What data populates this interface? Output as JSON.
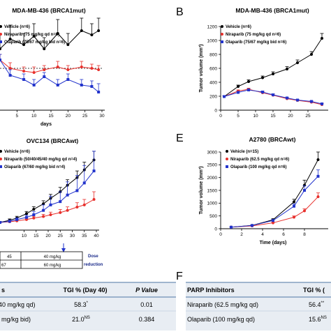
{
  "colors": {
    "vehicle": "#000000",
    "niraparib": "#e8302c",
    "olaparib": "#2233cc",
    "table_bg": "#e8edf3",
    "table_line": "#6d8fb5",
    "schedule_text": "#1a2a8a"
  },
  "chart_data": [
    {
      "id": "A",
      "type": "line",
      "title": "MDA-MB-436 (BRCA1mut)",
      "xlabel": "",
      "ylabel": "",
      "xlim": [
        0,
        30
      ],
      "xticks": [
        5,
        10,
        15,
        20,
        25,
        30
      ],
      "legend": [
        "Vehicle (n=6)",
        "Niraparib (75 mg/kg qd n=6)",
        "Olaparib (75/67 mg/kg bid n=6)"
      ],
      "series": [
        {
          "name": "Vehicle (n=6)",
          "x": [
            0,
            3,
            7,
            10,
            13,
            17,
            20,
            24,
            27,
            29
          ],
          "y": [
            104,
            111,
            107,
            113,
            104,
            115,
            107,
            117,
            114,
            117
          ],
          "err": [
            10,
            10,
            8,
            9,
            8,
            10,
            8,
            9,
            8,
            9
          ]
        },
        {
          "name": "Niraparib (75 mg/kg qd n=6)",
          "x": [
            0,
            3,
            7,
            10,
            13,
            17,
            20,
            24,
            27,
            29
          ],
          "y": [
            96,
            90,
            88,
            87,
            89,
            91,
            89,
            91,
            90,
            89
          ],
          "err": [
            4,
            4,
            3,
            4,
            3,
            4,
            3,
            4,
            3,
            3
          ]
        },
        {
          "name": "Olaparib (75/67 mg/kg bid n=6)",
          "x": [
            0,
            3,
            7,
            10,
            13,
            17,
            20,
            24,
            27,
            29
          ],
          "y": [
            96,
            85,
            82,
            78,
            84,
            78,
            82,
            78,
            77,
            73
          ],
          "err": [
            4,
            4,
            4,
            4,
            3,
            4,
            4,
            4,
            4,
            6
          ]
        }
      ],
      "reference_line": 100
    },
    {
      "id": "B",
      "type": "line",
      "title": "MDA-MB-436 (BRCA1mut)",
      "xlabel": "",
      "ylabel": "Tumor volume (mm³)",
      "xlim": [
        0,
        30
      ],
      "ylim": [
        0,
        1200
      ],
      "xticks": [
        0,
        5,
        10,
        15,
        20,
        25
      ],
      "yticks": [
        0,
        200,
        400,
        600,
        800,
        1000,
        1200
      ],
      "legend": [
        "Vehicle (n=6)",
        "Niraparib (75 mg/kg qd n=6)",
        "Olaparib (75/67 mg/kg bid n=6)"
      ],
      "series": [
        {
          "name": "Vehicle (n=6)",
          "x": [
            1,
            5,
            8,
            12,
            15,
            19,
            22,
            26,
            29
          ],
          "y": [
            195,
            340,
            410,
            465,
            520,
            590,
            680,
            800,
            1030
          ],
          "err": [
            10,
            20,
            25,
            25,
            30,
            35,
            40,
            40,
            70
          ]
        },
        {
          "name": "Niraparib (75 mg/kg qd n=6)",
          "x": [
            1,
            5,
            8,
            12,
            15,
            19,
            22,
            26,
            29
          ],
          "y": [
            195,
            275,
            300,
            250,
            215,
            165,
            140,
            115,
            80
          ],
          "err": [
            10,
            15,
            15,
            15,
            15,
            10,
            10,
            10,
            10
          ]
        },
        {
          "name": "Olaparib (75/67 mg/kg bid n=6)",
          "x": [
            1,
            5,
            8,
            12,
            15,
            19,
            22,
            26,
            29
          ],
          "y": [
            195,
            255,
            290,
            260,
            220,
            175,
            145,
            125,
            90
          ],
          "err": [
            10,
            15,
            15,
            15,
            15,
            10,
            10,
            10,
            10
          ]
        }
      ]
    },
    {
      "id": "C",
      "type": "line",
      "title": "OVC134 (BRCAwt)",
      "xlabel": "",
      "ylabel": "",
      "xlim": [
        0,
        40
      ],
      "xticks": [
        10,
        15,
        20,
        25,
        30,
        35,
        40
      ],
      "legend": [
        "Vehicle (n=6)",
        "Niraparib (50/40/45/40 mg/kg qd n=4)",
        "Olaparib (67/60 mg/kg bid n=4)"
      ],
      "series": [
        {
          "name": "Vehicle (n=6)",
          "x": [
            0,
            4,
            7,
            11,
            14,
            18,
            21,
            25,
            28,
            32,
            35,
            39
          ],
          "y": [
            35,
            45,
            55,
            75,
            95,
            120,
            145,
            175,
            205,
            240,
            275,
            320
          ],
          "err": [
            5,
            6,
            8,
            10,
            12,
            14,
            18,
            20,
            25,
            30,
            35,
            40
          ]
        },
        {
          "name": "Niraparib (50/40/45/40 mg/kg qd n=4)",
          "x": [
            0,
            4,
            7,
            11,
            14,
            18,
            21,
            25,
            28,
            32,
            35,
            39
          ],
          "y": [
            35,
            38,
            42,
            48,
            55,
            62,
            70,
            80,
            90,
            105,
            115,
            140
          ],
          "err": [
            4,
            5,
            5,
            6,
            8,
            10,
            12,
            14,
            16,
            20,
            25,
            35
          ]
        },
        {
          "name": "Olaparib (67/60 mg/kg bid n=4)",
          "x": [
            0,
            4,
            7,
            11,
            14,
            18,
            21,
            25,
            28,
            32,
            35,
            39
          ],
          "y": [
            35,
            40,
            48,
            58,
            70,
            90,
            115,
            130,
            160,
            180,
            215,
            270
          ],
          "err": [
            5,
            6,
            8,
            10,
            15,
            25,
            40,
            45,
            60,
            70,
            80,
            90
          ]
        }
      ]
    },
    {
      "id": "E",
      "type": "line",
      "title": "A2780 (BRCAwt)",
      "xlabel": "Time (days)",
      "ylabel": "Tumor volume (mm³)",
      "xlim": [
        0,
        10
      ],
      "ylim": [
        0,
        3000
      ],
      "xticks": [
        0,
        2,
        4,
        6,
        8
      ],
      "yticks": [
        0,
        500,
        1000,
        1500,
        2000,
        2500,
        3000
      ],
      "legend": [
        "Vehicle (n=15)",
        "Niraparib (62.5 mg/kg qd n=6)",
        "Olaparib (100 mg/kg qd n=6)"
      ],
      "series": [
        {
          "name": "Vehicle (n=15)",
          "x": [
            1,
            3,
            5,
            7,
            8,
            9.3
          ],
          "y": [
            60,
            130,
            350,
            1050,
            1700,
            2700
          ],
          "err": [
            10,
            20,
            40,
            100,
            200,
            300
          ]
        },
        {
          "name": "Niraparib (62.5 mg/kg qd n=6)",
          "x": [
            1,
            3,
            5,
            7,
            8,
            9.3
          ],
          "y": [
            60,
            110,
            230,
            450,
            700,
            1250
          ],
          "err": [
            10,
            15,
            25,
            50,
            80,
            150
          ]
        },
        {
          "name": "Olaparib (100 mg/kg qd n=6)",
          "x": [
            1,
            3,
            5,
            7,
            8,
            9.3
          ],
          "y": [
            60,
            125,
            320,
            880,
            1500,
            2050
          ],
          "err": [
            10,
            20,
            40,
            90,
            180,
            250
          ]
        }
      ]
    },
    {
      "id": "D",
      "type": "table",
      "headers": [
        "s",
        "TGI % (Day 40)",
        "P Value"
      ],
      "rows": [
        [
          "40 mg/kg qd)",
          "58.3",
          "*",
          "0.01"
        ],
        [
          "mg/kg bid)",
          "21.0",
          "NS",
          "0.384"
        ]
      ]
    },
    {
      "id": "F",
      "type": "table",
      "headers": [
        "PARP Inhibitors",
        "TGI % ("
      ],
      "rows": [
        [
          "Niraparib (62.5 mg/kg qd)",
          "56.4",
          "**"
        ],
        [
          "Olaparib (100 mg/kg qd)",
          "15.6",
          "NS"
        ]
      ]
    }
  ],
  "labels": {
    "letter_b": "B",
    "letter_e": "E",
    "letter_f": "F",
    "days": "days",
    "time_days": "Time (days)"
  },
  "schedule": {
    "val1": "45",
    "val2": "40 mg/kg",
    "val3": "67",
    "val4": "60 mg/kg",
    "note": "Dose reduction"
  }
}
